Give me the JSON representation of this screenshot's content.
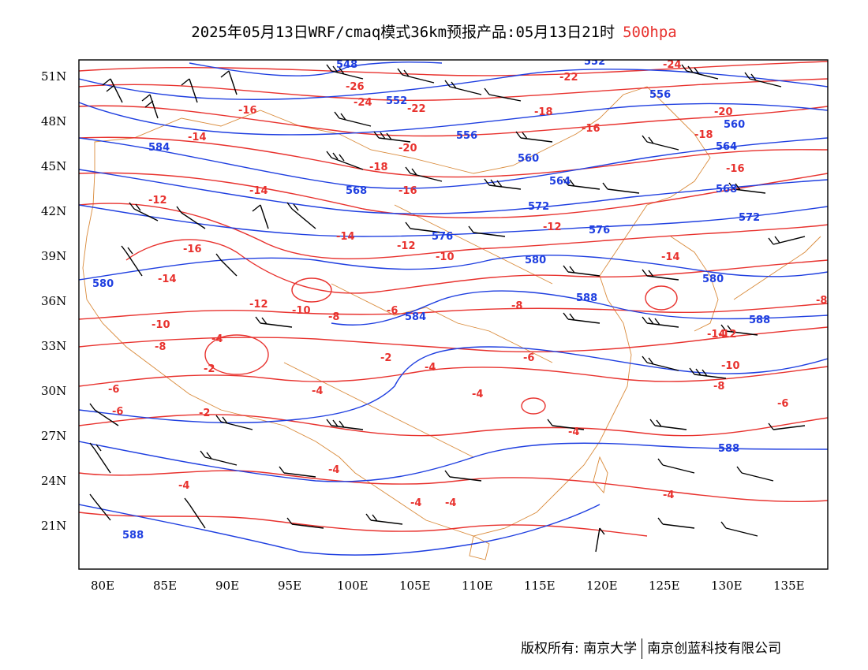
{
  "title": "2025年05月13日WRF/cmaq模式36km预报产品:05月13日21时",
  "level": "500hpa",
  "lat_labels": [
    "51N",
    "48N",
    "45N",
    "42N",
    "39N",
    "36N",
    "33N",
    "30N",
    "27N",
    "24N",
    "21N"
  ],
  "lon_labels": [
    "80E",
    "85E",
    "90E",
    "95E",
    "100E",
    "105E",
    "110E",
    "115E",
    "120E",
    "125E",
    "130E",
    "135E"
  ],
  "footer": {
    "left": "版权所有: 南京大学",
    "right": "南京创蓝科技有限公司"
  },
  "colors": {
    "temperature": "#e8322e",
    "height": "#1f3fe0",
    "coastline": "#d98a3a",
    "barbs": "#000000"
  },
  "temperature_labels": [
    "-24",
    "-26",
    "-24",
    "-22",
    "-22",
    "-16",
    "-14",
    "-18",
    "-20",
    "-18",
    "-16",
    "-16",
    "-20",
    "-18",
    "-16",
    "-14",
    "-12",
    "-14",
    "-16",
    "-12",
    "-10",
    "-12",
    "-14",
    "-8",
    "-14",
    "-10",
    "-12",
    "-8",
    "-6",
    "-10",
    "-8",
    "-4",
    "-2",
    "-2",
    "-4",
    "-6",
    "-4",
    "-14",
    "-12",
    "-10",
    "-8",
    "-6",
    "-4",
    "-4",
    "-4",
    "-4",
    "-4",
    "-4",
    "-4",
    "-2",
    "-6",
    "-8",
    "-6"
  ],
  "height_labels": [
    "548",
    "552",
    "552",
    "556",
    "556",
    "560",
    "560",
    "564",
    "564",
    "568",
    "568",
    "572",
    "572",
    "576",
    "576",
    "580",
    "580",
    "580",
    "584",
    "584",
    "588",
    "588",
    "588",
    "588"
  ],
  "barbs_description": "wind barbs"
}
